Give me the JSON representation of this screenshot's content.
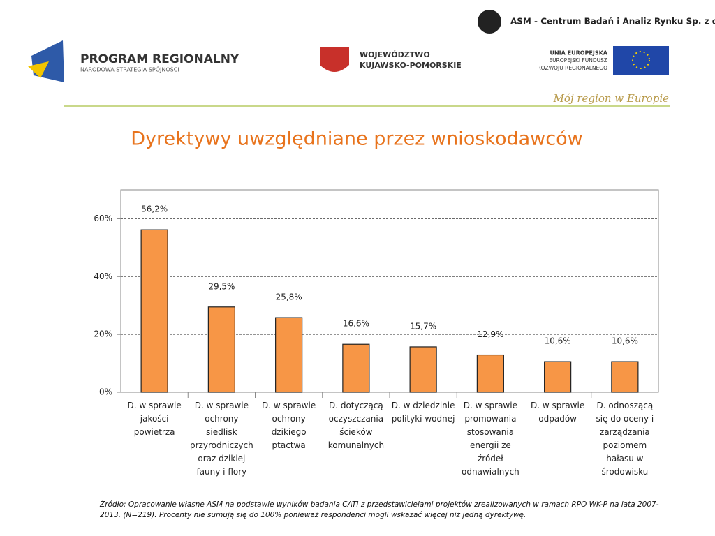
{
  "header": {
    "company": "ASM - Centrum Badań i Analiz Rynku Sp. z o.o.",
    "program": "PROGRAM REGIONALNY",
    "program_sub": "NARODOWA STRATEGIA SPÓJNOŚCI",
    "region_1": "WOJEWÓDZTWO",
    "region_2": "KUJAWSKO-POMORSKIE",
    "eu_1": "UNIA EUROPEJSKA",
    "eu_2": "EUROPEJSKI FUNDUSZ",
    "eu_3": "ROZWOJU REGIONALNEGO",
    "slogan": "Mój region w Europie"
  },
  "chart_data": {
    "type": "bar",
    "title": "Dyrektywy uwzględniane przez wnioskodawców",
    "categories": [
      "D. w sprawie jakości powietrza",
      "D. w sprawie ochrony siedlisk przyrodniczych oraz dzikiej fauny i flory",
      "D. w sprawie ochrony dzikiego ptactwa",
      "D. dotyczącą oczyszczania ścieków komunalnych",
      "D. w dziedzinie polityki wodnej",
      "D. w sprawie promowania stosowania energii ze źródeł odnawialnych",
      "D. w sprawie odpadów",
      "D. odnoszącą się do oceny i zarządzania poziomem hałasu w środowisku"
    ],
    "values": [
      56.2,
      29.5,
      25.8,
      16.6,
      15.7,
      12.9,
      10.6,
      10.6
    ],
    "value_labels": [
      "56,2%",
      "29,5%",
      "25,8%",
      "16,6%",
      "15,7%",
      "12,9%",
      "10,6%",
      "10,6%"
    ],
    "color": "#f79646",
    "ylim": [
      0,
      70
    ],
    "yticks": [
      {
        "value": 0,
        "label": "0%"
      },
      {
        "value": 20,
        "label": "20%"
      },
      {
        "value": 40,
        "label": "40%"
      },
      {
        "value": 60,
        "label": "60%"
      }
    ],
    "grid": true
  },
  "source": "Źródło: Opracowanie własne ASM na podstawie wyników badania CATI z przedstawicielami projektów zrealizowanych w ramach RPO WK-P na lata 2007-2013. (N=219). Procenty nie sumują się do 100% ponieważ respondenci mogli wskazać więcej niż jedną dyrektywę."
}
